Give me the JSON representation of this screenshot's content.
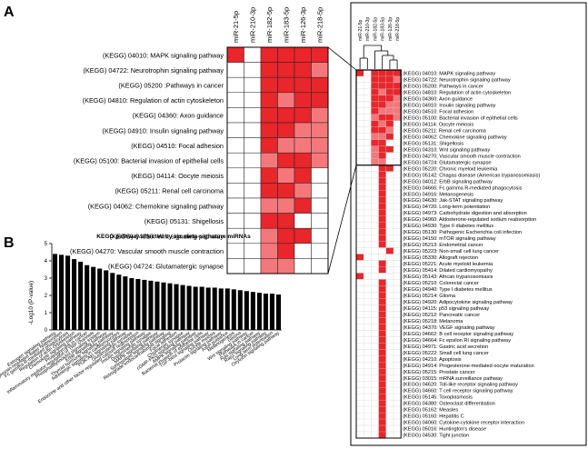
{
  "panels": {
    "a": "A",
    "b": "B"
  },
  "mirnas": [
    "miR-21-5p",
    "miR-210-3p",
    "miR-182-5p",
    "miR-183-5p",
    "miR-126-3p",
    "miR-218-5p"
  ],
  "zoom_pathways": [
    "(KEGG) 04010: MAPK signaling pathway",
    "(KEGG) 04722: Neurotrophin  signaling pathway",
    "(KEGG) 05200 :Pathways in cancer",
    "(KEGG) 04810: Regulation of actin cytoskeleton",
    "(KEGG) 04360: Axon guidance",
    "(KEGG) 04910: Insulin signaling pathway",
    "(KEGG) 04510: Focal adhesion",
    "(KEGG) 05100: Bacterial invasion of epithelial cells",
    "(KEGG) 04114: Oocyte meiosis",
    "(KEGG) 05211: Renal cell carcinoma",
    "(KEGG) 04062: Chemokine signaling pathway",
    "(KEGG) 05131: Shigellosis",
    "(KEGG) 04310: Wnt signaling pathway",
    "(KEGG) 04270: Vascular smooth muscle contraction",
    "(KEGG) 04724: Glutamatergic synapse"
  ],
  "zoom_cells": [
    [
      3,
      0,
      3,
      3,
      3,
      3
    ],
    [
      0,
      0,
      3,
      3,
      3,
      2
    ],
    [
      0,
      0,
      3,
      3,
      3,
      3
    ],
    [
      0,
      0,
      3,
      2,
      3,
      3
    ],
    [
      0,
      0,
      3,
      3,
      3,
      2
    ],
    [
      0,
      0,
      3,
      3,
      2,
      2
    ],
    [
      0,
      0,
      3,
      2,
      2,
      2
    ],
    [
      0,
      0,
      2,
      3,
      3,
      2
    ],
    [
      0,
      0,
      3,
      2,
      3,
      0
    ],
    [
      0,
      0,
      3,
      3,
      2,
      0
    ],
    [
      0,
      0,
      2,
      2,
      3,
      0
    ],
    [
      0,
      0,
      3,
      3,
      0,
      0
    ],
    [
      0,
      0,
      2,
      3,
      3,
      0
    ],
    [
      0,
      0,
      2,
      3,
      0,
      0
    ],
    [
      0,
      0,
      2,
      2,
      0,
      0
    ]
  ],
  "full_pathways": [
    "(KEGG) 04010: MAPK signaling pathway",
    "(KEGG) 04722: Neurotrophin signaling pathway",
    "(KEGG) 05200: Pathways in cancer",
    "(KEGG) 04810: Regulation of actin cytoskeleton",
    "(KEGG) 04360: Axon guidance",
    "(KEGG) 04910: Insulin signaling pathway",
    "(KEGG) 04510: Focal adhesion",
    "(KEGG) 05100: Bacterial invasion of epithelial cells",
    "(KEGG) 04114: Oocyte meiosis",
    "(KEGG) 05211: Renal cell carcinoma",
    "(KEGG) 04062: Chemokine signaling pathway",
    "(KEGG) 05131: Shigellosis",
    "(KEGG) 04310: Wnt signaling pathway",
    "(KEGG) 04270: Vascular smooth muscle contraction",
    "(KEGG) 04724: Glutamatergic synapse",
    "(KEGG) 05220: Chronic myeloid leukemia",
    "(KEGG) 05142: Chagas disease (American trypanosomiasis)",
    "(KEGG) 04012: ErbB signaling pathway",
    "(KEGG) 04666: Fc gamma R-mediated phagocytosis",
    "(KEGG) 04916: Melanogenesis",
    "(KEGG) 04630: Jak-STAT signaling pathway",
    "(KEGG) 04720: Long-term potentiation",
    "(KEGG) 04973: Carbohydrate digestion and absorption",
    "(KEGG) 04960: Aldosterone-regulated sodium reabsorption",
    "(KEGG) 04930: Type II diabetes mellitus",
    "(KEGG) 05130: Pathogenic Escherichia coli infection",
    "(KEGG) 04150: mTOR signaling pathway",
    "(KEGG) 05213: Endometrial cancer",
    "(KEGG) 05223: Non-small cell lung cancer",
    "(KEGG) 05330: Allograft rejection",
    "(KEGG) 05221: Acute myeloid leukemia",
    "(KEGG) 05414: Dilated cardiomyopathy",
    "(KEGG) 05143: African trypanosomiasis",
    "(KEGG) 05210: Colorectal cancer",
    "(KEGG) 04940: Type I diabetes mellitus",
    "(KEGG) 05214: Glioma",
    "(KEGG) 04920: Adipocytokine signaling pathway",
    "(KEGG) 04115: p53 signaling pathway",
    "(KEGG) 05212: Pancreatic cancer",
    "(KEGG) 05218: Melanoma",
    "(KEGG) 04370: VEGF signaling pathway",
    "(KEGG) 04662: B cell receptor signaling pathway",
    "(KEGG) 04664: Fc epsilon RI signaling pathway",
    "(KEGG) 04971: Gastric acid secretion",
    "(KEGG) 05222: Small cell lung cancer",
    "(KEGG) 04210: Apoptosis",
    "(KEGG) 04914: Progesterone-mediated oocyte maturation",
    "(KEGG) 05215: Prostate cancer",
    "(KEGG) 03015: mRNA surveillance pathway",
    "(KEGG) 04620: Toll-like receptor signaling pathway",
    "(KEGG) 04660: T cell receptor signaling pathway",
    "(KEGG) 05145: Toxoplasmosis",
    "(KEGG) 04380: Osteoclast differentiation",
    "(KEGG) 05162: Measles",
    "(KEGG) 05160: Hepatitis C",
    "(KEGG) 04060: Cytokine-cytokine receptor interaction",
    "(KEGG) 05016: Huntington's disease",
    "(KEGG) 04530: Tight junction"
  ],
  "full_cells": [
    [
      3,
      0,
      3,
      3,
      3,
      3
    ],
    [
      0,
      0,
      3,
      3,
      3,
      2
    ],
    [
      0,
      0,
      3,
      3,
      3,
      3
    ],
    [
      0,
      0,
      3,
      2,
      3,
      3
    ],
    [
      0,
      0,
      3,
      3,
      3,
      2
    ],
    [
      0,
      0,
      3,
      3,
      2,
      2
    ],
    [
      0,
      0,
      3,
      2,
      2,
      2
    ],
    [
      0,
      0,
      2,
      3,
      3,
      2
    ],
    [
      0,
      0,
      3,
      2,
      3,
      0
    ],
    [
      0,
      0,
      3,
      3,
      2,
      0
    ],
    [
      0,
      0,
      2,
      2,
      3,
      0
    ],
    [
      0,
      0,
      3,
      3,
      0,
      0
    ],
    [
      0,
      0,
      2,
      3,
      3,
      0
    ],
    [
      0,
      0,
      2,
      3,
      0,
      0
    ],
    [
      0,
      0,
      2,
      2,
      0,
      0
    ],
    [
      0,
      0,
      0,
      3,
      3,
      0
    ],
    [
      0,
      0,
      0,
      3,
      0,
      0
    ],
    [
      0,
      0,
      0,
      3,
      0,
      0
    ],
    [
      0,
      0,
      0,
      3,
      0,
      0
    ],
    [
      0,
      0,
      0,
      3,
      0,
      0
    ],
    [
      0,
      0,
      0,
      3,
      0,
      0
    ],
    [
      0,
      0,
      0,
      3,
      0,
      0
    ],
    [
      0,
      0,
      0,
      3,
      0,
      0
    ],
    [
      0,
      0,
      0,
      3,
      0,
      0
    ],
    [
      0,
      0,
      0,
      3,
      0,
      0
    ],
    [
      0,
      0,
      0,
      3,
      0,
      0
    ],
    [
      0,
      0,
      0,
      3,
      0,
      0
    ],
    [
      0,
      0,
      0,
      3,
      0,
      0
    ],
    [
      0,
      0,
      0,
      0,
      3,
      0
    ],
    [
      3,
      0,
      0,
      0,
      0,
      0
    ],
    [
      0,
      0,
      0,
      3,
      0,
      0
    ],
    [
      0,
      0,
      0,
      3,
      0,
      0
    ],
    [
      3,
      0,
      0,
      0,
      0,
      0
    ],
    [
      0,
      0,
      0,
      3,
      0,
      0
    ],
    [
      0,
      0,
      0,
      3,
      0,
      0
    ],
    [
      0,
      0,
      0,
      3,
      0,
      0
    ],
    [
      0,
      0,
      0,
      3,
      0,
      0
    ],
    [
      0,
      0,
      0,
      3,
      0,
      0
    ],
    [
      0,
      0,
      0,
      3,
      0,
      0
    ],
    [
      0,
      0,
      0,
      3,
      0,
      0
    ],
    [
      0,
      0,
      0,
      3,
      0,
      0
    ],
    [
      0,
      0,
      0,
      3,
      0,
      0
    ],
    [
      0,
      0,
      0,
      3,
      0,
      0
    ],
    [
      0,
      0,
      0,
      3,
      0,
      0
    ],
    [
      0,
      0,
      0,
      3,
      0,
      0
    ],
    [
      0,
      0,
      0,
      3,
      0,
      0
    ],
    [
      0,
      0,
      0,
      3,
      0,
      0
    ],
    [
      0,
      0,
      0,
      3,
      0,
      0
    ],
    [
      0,
      0,
      0,
      3,
      0,
      0
    ],
    [
      0,
      0,
      0,
      3,
      0,
      0
    ],
    [
      0,
      0,
      0,
      3,
      0,
      0
    ],
    [
      0,
      0,
      0,
      3,
      0,
      0
    ],
    [
      0,
      0,
      0,
      3,
      0,
      0
    ],
    [
      0,
      0,
      0,
      3,
      0,
      0
    ],
    [
      0,
      0,
      0,
      3,
      0,
      0
    ],
    [
      0,
      0,
      0,
      3,
      0,
      0
    ],
    [
      0,
      0,
      0,
      3,
      0,
      0
    ],
    [
      0,
      0,
      0,
      3,
      0,
      0
    ]
  ],
  "colors": {
    "strong": "#e8262b",
    "medium": "#f4787b",
    "light": "#fbd0d0",
    "empty": "#ffffff",
    "bar": "#000000"
  },
  "chart_data": {
    "type": "bar",
    "title": "KEGG pathway affected by six meta-signature miRNAs",
    "ylabel": "-Log10 (P-value)",
    "xlabel": "",
    "ylim": [
      0,
      5
    ],
    "yticks": [
      0,
      1,
      2,
      3,
      4,
      5
    ],
    "categories": [
      "Estrogen signaling pathway",
      "Vasopressin-regulated water reabsorption",
      "Fc gamma R-mediated phagocytosis",
      "Regulation of actin cytoskeleton",
      "Chemokine signaling pathway",
      "Proteoglycans in cancer",
      "Inflammatory mediator regulation of TRP channels",
      "Phosphatidylinositol signaling system",
      "ErbB signaling pathway",
      "Thyroid hormone signaling pathway",
      "Adrenergic signaling in cardiomyocytes",
      "PI3K-Akt signaling pathway",
      "Glutamatergic synapse",
      "Endocrine and other factor-regulated calcium reabsorption",
      "Insulin signaling pathway",
      "Dopaminergic synapse",
      "MAPK signaling pathway",
      "Sphingolipid signaling pathway",
      "Retrograde endocannabinoid signaling",
      "Focal adhesion",
      "Cholinergic synapse",
      "cGMP-PKG signaling pathway",
      "AMPK signaling pathway",
      "Bacterial invasion of epithelial cells",
      "TGF-beta signaling pathway",
      "Oocyte meiosis",
      "Prolactin signaling pathway",
      "Axon guidance",
      "Melanogenesis",
      "Glioma",
      "Wnt signaling pathway",
      "Pathways in cancer",
      "Ras signaling pathway",
      "Rap1 signaling pathway",
      "Long-term potentiation",
      "Oxytocin signaling pathway"
    ],
    "values": [
      4.4,
      4.35,
      4.3,
      4.1,
      3.95,
      3.75,
      3.65,
      3.55,
      3.45,
      3.3,
      3.2,
      3.1,
      3.0,
      2.95,
      2.9,
      2.85,
      2.8,
      2.75,
      2.7,
      2.65,
      2.6,
      2.55,
      2.5,
      2.5,
      2.45,
      2.45,
      2.4,
      2.4,
      2.35,
      2.3,
      2.25,
      2.2,
      2.15,
      2.1,
      2.1,
      2.05
    ]
  }
}
